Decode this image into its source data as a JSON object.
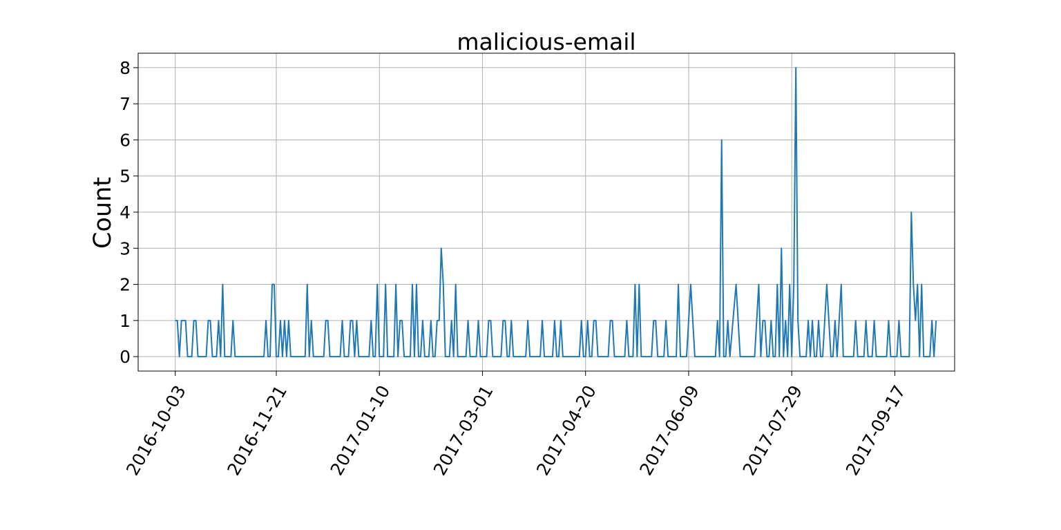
{
  "chart_data": {
    "type": "line",
    "title": "malicious-email",
    "xlabel": "",
    "ylabel": "Count",
    "x_tick_labels": [
      "2016-10-03",
      "2016-11-21",
      "2017-01-10",
      "2017-03-01",
      "2017-04-20",
      "2017-06-09",
      "2017-07-29",
      "2017-09-17"
    ],
    "y_ticks": [
      0,
      1,
      2,
      3,
      4,
      5,
      6,
      7,
      8
    ],
    "xlim": [
      "2016-09-15",
      "2017-10-16"
    ],
    "ylim": [
      -0.4,
      8.4
    ],
    "grid": true,
    "series": [
      {
        "name": "",
        "color": "#1f77b4",
        "points": [
          [
            "2016-10-03",
            1
          ],
          [
            "2016-10-04",
            1
          ],
          [
            "2016-10-05",
            0
          ],
          [
            "2016-10-06",
            1
          ],
          [
            "2016-10-07",
            1
          ],
          [
            "2016-10-08",
            1
          ],
          [
            "2016-10-09",
            0
          ],
          [
            "2016-10-11",
            0
          ],
          [
            "2016-10-12",
            1
          ],
          [
            "2016-10-13",
            1
          ],
          [
            "2016-10-14",
            0
          ],
          [
            "2016-10-18",
            0
          ],
          [
            "2016-10-19",
            1
          ],
          [
            "2016-10-20",
            1
          ],
          [
            "2016-10-21",
            0
          ],
          [
            "2016-10-23",
            0
          ],
          [
            "2016-10-24",
            1
          ],
          [
            "2016-10-25",
            0
          ],
          [
            "2016-10-26",
            2
          ],
          [
            "2016-10-27",
            0
          ],
          [
            "2016-10-30",
            0
          ],
          [
            "2016-10-31",
            1
          ],
          [
            "2016-11-01",
            0
          ],
          [
            "2016-11-15",
            0
          ],
          [
            "2016-11-16",
            1
          ],
          [
            "2016-11-17",
            0
          ],
          [
            "2016-11-18",
            0
          ],
          [
            "2016-11-19",
            2
          ],
          [
            "2016-11-20",
            2
          ],
          [
            "2016-11-21",
            0
          ],
          [
            "2016-11-22",
            0
          ],
          [
            "2016-11-23",
            1
          ],
          [
            "2016-11-24",
            0
          ],
          [
            "2016-11-25",
            1
          ],
          [
            "2016-11-26",
            0
          ],
          [
            "2016-11-27",
            1
          ],
          [
            "2016-11-28",
            0
          ],
          [
            "2016-12-05",
            0
          ],
          [
            "2016-12-06",
            2
          ],
          [
            "2016-12-07",
            0
          ],
          [
            "2016-12-08",
            1
          ],
          [
            "2016-12-09",
            0
          ],
          [
            "2016-12-14",
            0
          ],
          [
            "2016-12-15",
            1
          ],
          [
            "2016-12-16",
            1
          ],
          [
            "2016-12-17",
            0
          ],
          [
            "2016-12-22",
            0
          ],
          [
            "2016-12-23",
            1
          ],
          [
            "2016-12-24",
            0
          ],
          [
            "2016-12-26",
            0
          ],
          [
            "2016-12-27",
            1
          ],
          [
            "2016-12-28",
            1
          ],
          [
            "2016-12-29",
            0
          ],
          [
            "2016-12-30",
            1
          ],
          [
            "2016-12-31",
            0
          ],
          [
            "2017-01-05",
            0
          ],
          [
            "2017-01-06",
            1
          ],
          [
            "2017-01-07",
            0
          ],
          [
            "2017-01-08",
            0
          ],
          [
            "2017-01-09",
            2
          ],
          [
            "2017-01-10",
            0
          ],
          [
            "2017-01-12",
            0
          ],
          [
            "2017-01-13",
            2
          ],
          [
            "2017-01-14",
            0
          ],
          [
            "2017-01-17",
            0
          ],
          [
            "2017-01-18",
            2
          ],
          [
            "2017-01-19",
            0
          ],
          [
            "2017-01-20",
            1
          ],
          [
            "2017-01-21",
            1
          ],
          [
            "2017-01-22",
            0
          ],
          [
            "2017-01-25",
            0
          ],
          [
            "2017-01-26",
            2
          ],
          [
            "2017-01-27",
            0
          ],
          [
            "2017-01-28",
            2
          ],
          [
            "2017-01-29",
            0
          ],
          [
            "2017-01-30",
            0
          ],
          [
            "2017-01-31",
            1
          ],
          [
            "2017-02-01",
            0
          ],
          [
            "2017-02-03",
            0
          ],
          [
            "2017-02-04",
            1
          ],
          [
            "2017-02-05",
            0
          ],
          [
            "2017-02-06",
            0
          ],
          [
            "2017-02-07",
            1
          ],
          [
            "2017-02-08",
            1
          ],
          [
            "2017-02-09",
            3
          ],
          [
            "2017-02-10",
            2
          ],
          [
            "2017-02-11",
            0
          ],
          [
            "2017-02-13",
            0
          ],
          [
            "2017-02-14",
            1
          ],
          [
            "2017-02-15",
            0
          ],
          [
            "2017-02-16",
            2
          ],
          [
            "2017-02-17",
            0
          ],
          [
            "2017-02-21",
            0
          ],
          [
            "2017-02-22",
            1
          ],
          [
            "2017-02-23",
            0
          ],
          [
            "2017-02-26",
            0
          ],
          [
            "2017-02-27",
            1
          ],
          [
            "2017-02-28",
            0
          ],
          [
            "2017-03-03",
            0
          ],
          [
            "2017-03-04",
            1
          ],
          [
            "2017-03-05",
            1
          ],
          [
            "2017-03-06",
            0
          ],
          [
            "2017-03-10",
            0
          ],
          [
            "2017-03-11",
            1
          ],
          [
            "2017-03-12",
            1
          ],
          [
            "2017-03-13",
            0
          ],
          [
            "2017-03-14",
            0
          ],
          [
            "2017-03-15",
            1
          ],
          [
            "2017-03-16",
            0
          ],
          [
            "2017-03-22",
            0
          ],
          [
            "2017-03-23",
            1
          ],
          [
            "2017-03-24",
            0
          ],
          [
            "2017-03-29",
            0
          ],
          [
            "2017-03-30",
            1
          ],
          [
            "2017-03-31",
            0
          ],
          [
            "2017-04-04",
            0
          ],
          [
            "2017-04-05",
            1
          ],
          [
            "2017-04-06",
            0
          ],
          [
            "2017-04-07",
            0
          ],
          [
            "2017-04-08",
            1
          ],
          [
            "2017-04-09",
            0
          ],
          [
            "2017-04-17",
            0
          ],
          [
            "2017-04-18",
            1
          ],
          [
            "2017-04-19",
            0
          ],
          [
            "2017-04-20",
            0
          ],
          [
            "2017-04-21",
            1
          ],
          [
            "2017-04-22",
            0
          ],
          [
            "2017-04-23",
            0
          ],
          [
            "2017-04-24",
            1
          ],
          [
            "2017-04-25",
            1
          ],
          [
            "2017-04-26",
            0
          ],
          [
            "2017-05-01",
            0
          ],
          [
            "2017-05-02",
            1
          ],
          [
            "2017-05-03",
            1
          ],
          [
            "2017-05-04",
            0
          ],
          [
            "2017-05-09",
            0
          ],
          [
            "2017-05-10",
            1
          ],
          [
            "2017-05-11",
            0
          ],
          [
            "2017-05-13",
            0
          ],
          [
            "2017-05-14",
            2
          ],
          [
            "2017-05-15",
            0
          ],
          [
            "2017-05-16",
            2
          ],
          [
            "2017-05-17",
            0
          ],
          [
            "2017-05-22",
            0
          ],
          [
            "2017-05-23",
            1
          ],
          [
            "2017-05-24",
            1
          ],
          [
            "2017-05-25",
            0
          ],
          [
            "2017-05-28",
            0
          ],
          [
            "2017-05-29",
            1
          ],
          [
            "2017-05-30",
            0
          ],
          [
            "2017-06-03",
            0
          ],
          [
            "2017-06-04",
            2
          ],
          [
            "2017-06-05",
            0
          ],
          [
            "2017-06-08",
            0
          ],
          [
            "2017-06-10",
            2
          ],
          [
            "2017-06-12",
            0
          ],
          [
            "2017-06-22",
            0
          ],
          [
            "2017-06-23",
            1
          ],
          [
            "2017-06-24",
            0
          ],
          [
            "2017-06-25",
            6
          ],
          [
            "2017-06-26",
            0
          ],
          [
            "2017-06-27",
            0
          ],
          [
            "2017-06-28",
            1
          ],
          [
            "2017-06-29",
            0
          ],
          [
            "2017-07-02",
            2
          ],
          [
            "2017-07-04",
            0
          ],
          [
            "2017-07-11",
            0
          ],
          [
            "2017-07-13",
            2
          ],
          [
            "2017-07-14",
            0
          ],
          [
            "2017-07-15",
            1
          ],
          [
            "2017-07-16",
            1
          ],
          [
            "2017-07-17",
            0
          ],
          [
            "2017-07-18",
            0
          ],
          [
            "2017-07-19",
            1
          ],
          [
            "2017-07-20",
            0
          ],
          [
            "2017-07-21",
            0
          ],
          [
            "2017-07-22",
            2
          ],
          [
            "2017-07-23",
            0
          ],
          [
            "2017-07-24",
            3
          ],
          [
            "2017-07-25",
            0
          ],
          [
            "2017-07-26",
            1
          ],
          [
            "2017-07-27",
            0
          ],
          [
            "2017-07-28",
            2
          ],
          [
            "2017-07-29",
            0
          ],
          [
            "2017-07-30",
            2
          ],
          [
            "2017-07-31",
            8
          ],
          [
            "2017-08-01",
            1
          ],
          [
            "2017-08-02",
            0
          ],
          [
            "2017-08-05",
            0
          ],
          [
            "2017-08-06",
            1
          ],
          [
            "2017-08-07",
            0
          ],
          [
            "2017-08-08",
            1
          ],
          [
            "2017-08-09",
            0
          ],
          [
            "2017-08-10",
            0
          ],
          [
            "2017-08-11",
            1
          ],
          [
            "2017-08-12",
            0
          ],
          [
            "2017-08-13",
            0
          ],
          [
            "2017-08-15",
            2
          ],
          [
            "2017-08-17",
            0
          ],
          [
            "2017-08-18",
            0
          ],
          [
            "2017-08-19",
            1
          ],
          [
            "2017-08-20",
            0
          ],
          [
            "2017-08-21",
            1
          ],
          [
            "2017-08-22",
            2
          ],
          [
            "2017-08-23",
            0
          ],
          [
            "2017-08-28",
            0
          ],
          [
            "2017-08-29",
            1
          ],
          [
            "2017-08-30",
            0
          ],
          [
            "2017-09-02",
            0
          ],
          [
            "2017-09-03",
            1
          ],
          [
            "2017-09-04",
            0
          ],
          [
            "2017-09-06",
            0
          ],
          [
            "2017-09-07",
            1
          ],
          [
            "2017-09-08",
            0
          ],
          [
            "2017-09-13",
            0
          ],
          [
            "2017-09-14",
            1
          ],
          [
            "2017-09-15",
            0
          ],
          [
            "2017-09-18",
            0
          ],
          [
            "2017-09-19",
            1
          ],
          [
            "2017-09-20",
            0
          ],
          [
            "2017-09-24",
            0
          ],
          [
            "2017-09-25",
            4
          ],
          [
            "2017-09-26",
            2
          ],
          [
            "2017-09-27",
            1
          ],
          [
            "2017-09-28",
            2
          ],
          [
            "2017-09-29",
            0
          ],
          [
            "2017-09-30",
            2
          ],
          [
            "2017-10-01",
            0
          ],
          [
            "2017-10-04",
            0
          ],
          [
            "2017-10-05",
            1
          ],
          [
            "2017-10-06",
            0
          ],
          [
            "2017-10-07",
            1
          ]
        ]
      }
    ]
  }
}
